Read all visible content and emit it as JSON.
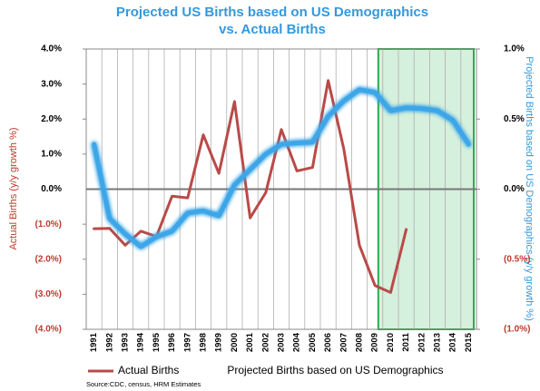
{
  "chart_data": {
    "type": "line",
    "title": [
      "Projected US Births based on US Demographics",
      "vs. Actual Births"
    ],
    "ylabel": "Actual Births (y/y growth %)",
    "y2label": "Projected Births based on US Demographics (y/y growth %)",
    "source": "Source:CDC, census, HRM Estimates",
    "categories": [
      "1991",
      "1992",
      "1993",
      "1994",
      "1995",
      "1996",
      "1997",
      "1998",
      "1999",
      "2000",
      "2001",
      "2002",
      "2003",
      "2004",
      "2005",
      "2006",
      "2007",
      "2008",
      "2009",
      "2010",
      "2011",
      "2012",
      "2013",
      "2014",
      "2015"
    ],
    "series": [
      {
        "name": "Actual Births",
        "color": "#b94a48",
        "axis": "y",
        "values": [
          -1.13,
          -1.12,
          -1.6,
          -1.2,
          -1.35,
          -0.2,
          -0.25,
          1.55,
          0.45,
          2.5,
          -0.82,
          -0.1,
          1.7,
          0.52,
          0.62,
          3.1,
          1.15,
          -1.6,
          -2.75,
          -2.95,
          -1.15,
          null,
          null,
          null,
          null
        ]
      },
      {
        "name": "Projected Births based on US Demographics",
        "color": "#3ea6e8",
        "axis": "y2",
        "values": [
          0.32,
          -0.21,
          -0.32,
          -0.41,
          -0.34,
          -0.3,
          -0.17,
          -0.155,
          -0.19,
          0.03,
          0.14,
          0.25,
          0.32,
          0.33,
          0.335,
          0.52,
          0.63,
          0.71,
          0.69,
          0.56,
          0.58,
          0.575,
          0.56,
          0.49,
          0.32
        ]
      }
    ],
    "ylim": [
      -4,
      4
    ],
    "yticks": [
      {
        "value": 4,
        "label": "4.0%"
      },
      {
        "value": 3,
        "label": "3.0%"
      },
      {
        "value": 2,
        "label": "2.0%"
      },
      {
        "value": 1,
        "label": "1.0%"
      },
      {
        "value": 0,
        "label": "0.0%"
      },
      {
        "value": -1,
        "label": "(1.0%)"
      },
      {
        "value": -2,
        "label": "(2.0%)"
      },
      {
        "value": -3,
        "label": "(3.0%)"
      },
      {
        "value": -4,
        "label": "(4.0%)"
      }
    ],
    "y2lim": [
      -1,
      1
    ],
    "y2ticks": [
      {
        "value": 1,
        "label": "1.0%"
      },
      {
        "value": 0.5,
        "label": "0.5%"
      },
      {
        "value": 0,
        "label": "0.0%"
      },
      {
        "value": -0.5,
        "label": "(0.5%)"
      },
      {
        "value": -1,
        "label": "(1.0%)"
      }
    ],
    "highlight": [
      "2010",
      "2015"
    ],
    "grid": true
  }
}
